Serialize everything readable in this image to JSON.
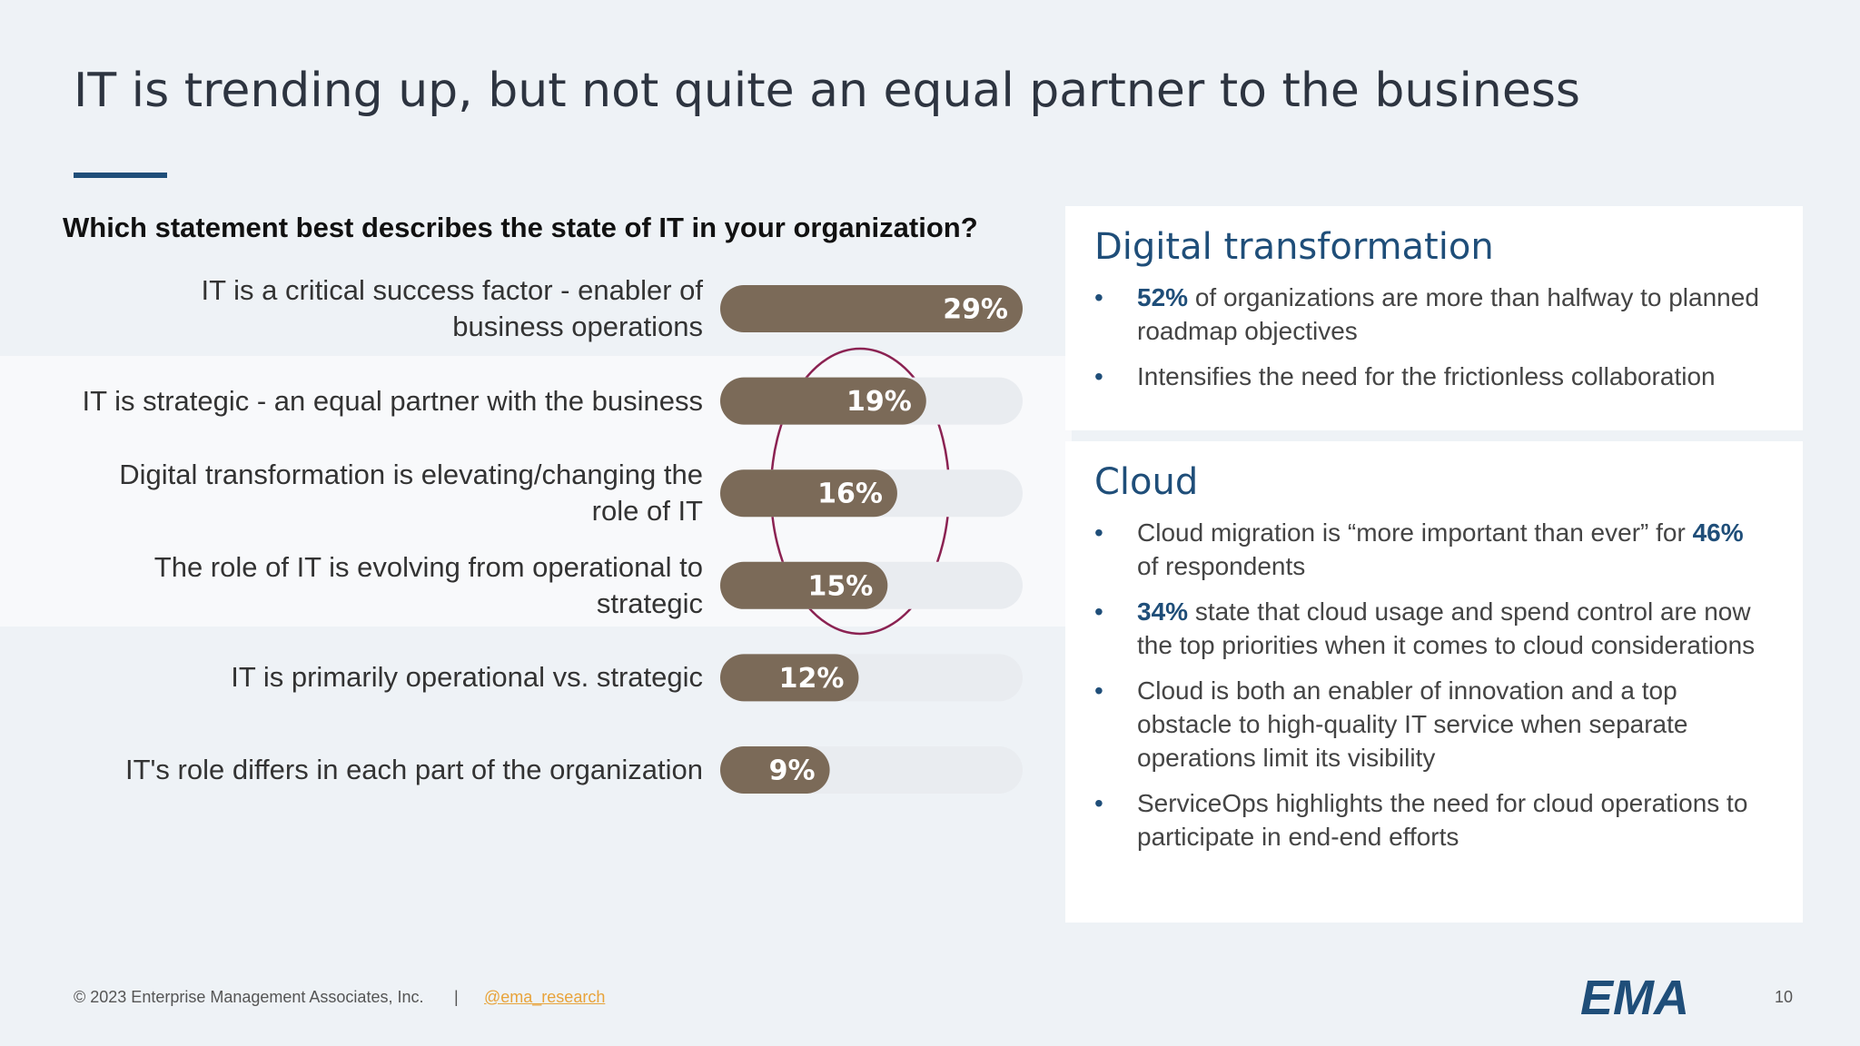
{
  "title": "IT is trending up, but not quite an equal partner to the business",
  "chart_data": {
    "type": "bar",
    "orientation": "horizontal",
    "title": "Which statement best describes the state of IT in your organization?",
    "categories": [
      "IT is a critical success factor - enabler of business operations",
      "IT is strategic - an equal partner with the business",
      "Digital transformation is elevating/changing the role of IT",
      "The role of IT is evolving from operational to strategic",
      "IT is primarily operational vs. strategic",
      "IT's role differs in each part of the organization"
    ],
    "values": [
      29,
      19,
      16,
      15,
      12,
      9
    ],
    "value_labels": [
      "29%",
      "19%",
      "16%",
      "15%",
      "12%",
      "9%"
    ],
    "color": "#7b6a58"
  },
  "panels": [
    {
      "heading": "Digital transformation",
      "bullets": [
        [
          {
            "text": "52%",
            "emphasis": true
          },
          {
            "text": " of organizations are more than halfway to planned roadmap objectives"
          }
        ],
        [
          {
            "text": "Intensifies the need for the frictionless collaboration"
          }
        ]
      ]
    },
    {
      "heading": "Cloud",
      "bullets": [
        [
          {
            "text": "Cloud migration is “more important than ever” for "
          },
          {
            "text": "46%",
            "emphasis": true
          },
          {
            "text": " of respondents"
          }
        ],
        [
          {
            "text": "34%",
            "emphasis": true
          },
          {
            "text": " state that cloud usage and spend control are now the top priorities when it comes to cloud considerations"
          }
        ],
        [
          {
            "text": "Cloud is both an enabler of innovation and a top obstacle to high-quality IT service when separate operations limit its visibility"
          }
        ],
        [
          {
            "text": "ServiceOps highlights the need for cloud operations to participate in end-end efforts"
          }
        ]
      ]
    }
  ],
  "footer": {
    "copyright": "© 2023 Enterprise Management Associates, Inc.",
    "separator": "|",
    "handle": "@ema_research",
    "logo": "EMA",
    "page": "10"
  }
}
